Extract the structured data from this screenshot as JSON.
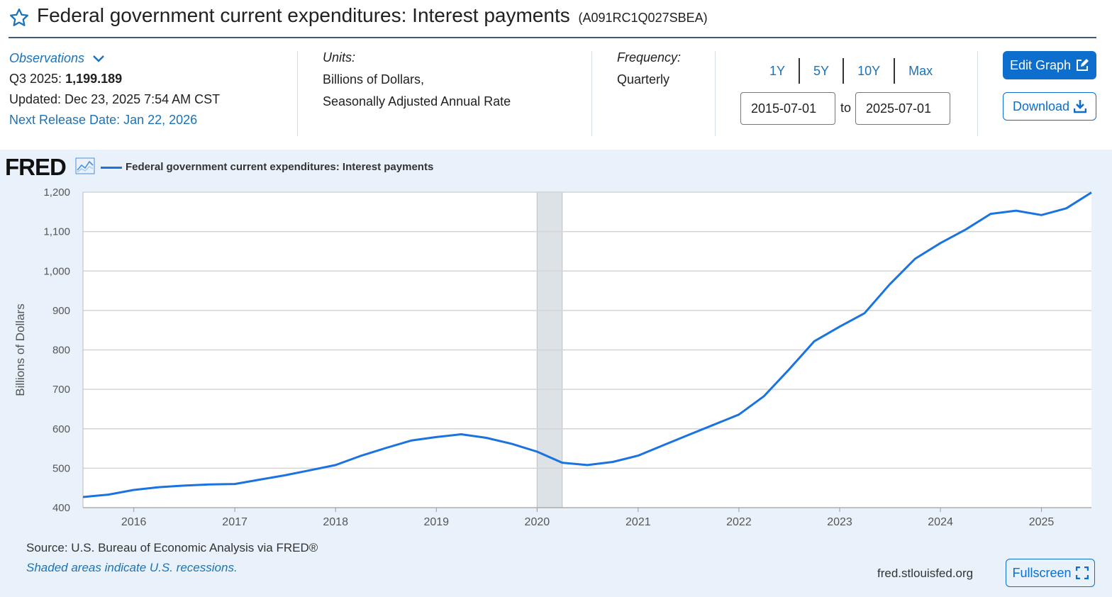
{
  "header": {
    "title": "Federal government current expenditures: Interest payments",
    "series_id": "(A091RC1Q027SBEA)"
  },
  "meta": {
    "observations_label": "Observations",
    "latest_label": "Q3 2025:",
    "latest_value": "1,199.189",
    "updated": "Updated: Dec 23, 2025 7:54 AM CST",
    "next_release": "Next Release Date: Jan 22, 2026",
    "units_label": "Units:",
    "units_line1": "Billions of Dollars,",
    "units_line2": "Seasonally Adjusted Annual Rate",
    "frequency_label": "Frequency:",
    "frequency_value": "Quarterly"
  },
  "controls": {
    "ranges": [
      "1Y",
      "5Y",
      "10Y",
      "Max"
    ],
    "start_date": "2015-07-01",
    "to_label": "to",
    "end_date": "2025-07-01",
    "edit_graph": "Edit Graph",
    "download": "Download",
    "fullscreen": "Fullscreen"
  },
  "chart_footer": {
    "logo": "FRED",
    "source": "Source: U.S. Bureau of Economic Analysis via FRED®",
    "shaded_note": "Shaded areas indicate U.S. recessions.",
    "url": "fred.stlouisfed.org"
  },
  "colors": {
    "line": "#1a73e0",
    "accent": "#0d6ecd",
    "panel_bg": "#e9f2fa",
    "recession": "#dde2e6"
  },
  "chart_data": {
    "type": "line",
    "title": "",
    "legend": "Federal government current expenditures: Interest payments",
    "xlabel": "",
    "ylabel": "Billions of Dollars",
    "ylim": [
      400,
      1200
    ],
    "yticks": [
      400,
      500,
      600,
      700,
      800,
      900,
      1000,
      1100,
      1200
    ],
    "ytick_labels": [
      "400",
      "500",
      "600",
      "700",
      "800",
      "900",
      "1,000",
      "1,100",
      "1,200"
    ],
    "xlim": [
      "2015-07-01",
      "2025-07-01"
    ],
    "xticks": [
      "2016",
      "2017",
      "2018",
      "2019",
      "2020",
      "2021",
      "2022",
      "2023",
      "2024",
      "2025"
    ],
    "grid": true,
    "recessions": [
      [
        "2020-01-01",
        "2020-04-01"
      ]
    ],
    "series": [
      {
        "name": "Federal government current expenditures: Interest payments",
        "x": [
          "2015-07-01",
          "2015-10-01",
          "2016-01-01",
          "2016-04-01",
          "2016-07-01",
          "2016-10-01",
          "2017-01-01",
          "2017-04-01",
          "2017-07-01",
          "2017-10-01",
          "2018-01-01",
          "2018-04-01",
          "2018-07-01",
          "2018-10-01",
          "2019-01-01",
          "2019-04-01",
          "2019-07-01",
          "2019-10-01",
          "2020-01-01",
          "2020-04-01",
          "2020-07-01",
          "2020-10-01",
          "2021-01-01",
          "2021-04-01",
          "2021-07-01",
          "2021-10-01",
          "2022-01-01",
          "2022-04-01",
          "2022-07-01",
          "2022-10-01",
          "2023-01-01",
          "2023-04-01",
          "2023-07-01",
          "2023-10-01",
          "2024-01-01",
          "2024-04-01",
          "2024-07-01",
          "2024-10-01",
          "2025-01-01",
          "2025-04-01",
          "2025-07-01"
        ],
        "values": [
          427,
          433,
          445,
          452,
          456,
          459,
          460,
          471,
          482,
          495,
          508,
          531,
          551,
          570,
          579,
          586,
          577,
          562,
          542,
          514,
          508,
          516,
          532,
          558,
          584,
          610,
          636,
          682,
          750,
          822,
          859,
          893,
          966,
          1031,
          1071,
          1105,
          1145,
          1153,
          1142,
          1159,
          1199.189
        ]
      }
    ]
  }
}
